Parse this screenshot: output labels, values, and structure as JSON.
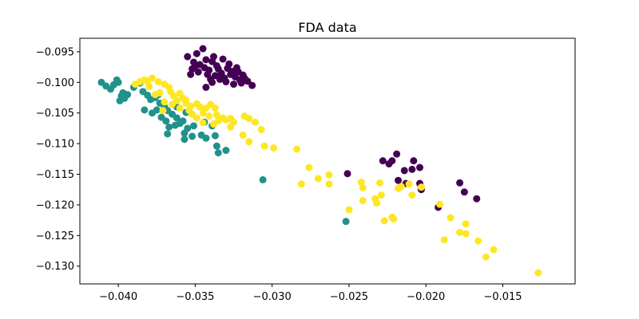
{
  "chart_data": {
    "type": "scatter",
    "title": "FDA data",
    "xlabel": "",
    "ylabel": "",
    "xlim": [
      -0.0425,
      -0.0103
    ],
    "ylim": [
      -0.1329,
      -0.0928
    ],
    "grid": false,
    "legend": "none",
    "x_ticks": [
      -0.04,
      -0.035,
      -0.03,
      -0.025,
      -0.02,
      -0.015
    ],
    "x_tick_labels": [
      "−0.040",
      "−0.035",
      "−0.030",
      "−0.025",
      "−0.020",
      "−0.015"
    ],
    "y_ticks": [
      -0.095,
      -0.1,
      -0.105,
      -0.11,
      -0.115,
      -0.12,
      -0.125,
      -0.13
    ],
    "y_tick_labels": [
      "−0.095",
      "−0.100",
      "−0.105",
      "−0.110",
      "−0.115",
      "−0.120",
      "−0.125",
      "−0.130"
    ],
    "series": [
      {
        "color": "#440154",
        "points": [
          [
            -0.0345,
            -0.0945
          ],
          [
            -0.0349,
            -0.0953
          ],
          [
            -0.0338,
            -0.0958
          ],
          [
            -0.0332,
            -0.0962
          ],
          [
            -0.0355,
            -0.0958
          ],
          [
            -0.0343,
            -0.0963
          ],
          [
            -0.0351,
            -0.0967
          ],
          [
            -0.0347,
            -0.0971
          ],
          [
            -0.0339,
            -0.0966
          ],
          [
            -0.0336,
            -0.0973
          ],
          [
            -0.0344,
            -0.0976
          ],
          [
            -0.0335,
            -0.0978
          ],
          [
            -0.0341,
            -0.098
          ],
          [
            -0.0329,
            -0.0977
          ],
          [
            -0.0326,
            -0.0982
          ],
          [
            -0.0333,
            -0.0985
          ],
          [
            -0.0322,
            -0.0983
          ],
          [
            -0.0327,
            -0.0987
          ],
          [
            -0.0319,
            -0.0988
          ],
          [
            -0.0324,
            -0.0991
          ],
          [
            -0.0318,
            -0.0993
          ],
          [
            -0.0316,
            -0.0998
          ],
          [
            -0.0321,
            -0.0996
          ],
          [
            -0.0331,
            -0.0993
          ],
          [
            -0.0337,
            -0.0989
          ],
          [
            -0.0342,
            -0.0987
          ],
          [
            -0.0348,
            -0.0983
          ],
          [
            -0.0352,
            -0.0978
          ],
          [
            -0.033,
            -0.0999
          ],
          [
            -0.0325,
            -0.1003
          ],
          [
            -0.032,
            -0.1001
          ],
          [
            -0.0313,
            -0.1005
          ],
          [
            -0.0339,
            -0.1
          ],
          [
            -0.0343,
            -0.1008
          ],
          [
            -0.0353,
            -0.0987
          ],
          [
            -0.0334,
            -0.0995
          ],
          [
            -0.0328,
            -0.097
          ],
          [
            -0.035,
            -0.0973
          ],
          [
            -0.034,
            -0.0995
          ],
          [
            -0.0323,
            -0.0976
          ],
          [
            -0.0251,
            -0.1149
          ],
          [
            -0.0228,
            -0.1128
          ],
          [
            -0.0224,
            -0.1133
          ],
          [
            -0.0219,
            -0.1117
          ],
          [
            -0.0222,
            -0.1128
          ],
          [
            -0.0214,
            -0.1144
          ],
          [
            -0.0208,
            -0.1128
          ],
          [
            -0.0209,
            -0.1142
          ],
          [
            -0.0204,
            -0.1139
          ],
          [
            -0.0218,
            -0.116
          ],
          [
            -0.0213,
            -0.1165
          ],
          [
            -0.0204,
            -0.1165
          ],
          [
            -0.0203,
            -0.1175
          ],
          [
            -0.0178,
            -0.1164
          ],
          [
            -0.0175,
            -0.1179
          ],
          [
            -0.0167,
            -0.119
          ],
          [
            -0.0192,
            -0.1204
          ]
        ]
      },
      {
        "color": "#21918c",
        "points": [
          [
            -0.0411,
            -0.1
          ],
          [
            -0.0408,
            -0.1006
          ],
          [
            -0.0403,
            -0.1004
          ],
          [
            -0.0401,
            -0.0996
          ],
          [
            -0.0405,
            -0.1011
          ],
          [
            -0.04,
            -0.1
          ],
          [
            -0.0397,
            -0.1017
          ],
          [
            -0.0398,
            -0.1022
          ],
          [
            -0.0396,
            -0.1026
          ],
          [
            -0.0394,
            -0.102
          ],
          [
            -0.0399,
            -0.103
          ],
          [
            -0.039,
            -0.1008
          ],
          [
            -0.0384,
            -0.1015
          ],
          [
            -0.0381,
            -0.1021
          ],
          [
            -0.0379,
            -0.1028
          ],
          [
            -0.0376,
            -0.1025
          ],
          [
            -0.0383,
            -0.1045
          ],
          [
            -0.0373,
            -0.1034
          ],
          [
            -0.0375,
            -0.1045
          ],
          [
            -0.037,
            -0.104
          ],
          [
            -0.0368,
            -0.1046
          ],
          [
            -0.0372,
            -0.1057
          ],
          [
            -0.0365,
            -0.1052
          ],
          [
            -0.0369,
            -0.1063
          ],
          [
            -0.0362,
            -0.1058
          ],
          [
            -0.036,
            -0.1067
          ],
          [
            -0.0367,
            -0.1073
          ],
          [
            -0.0363,
            -0.107
          ],
          [
            -0.0358,
            -0.1063
          ],
          [
            -0.0355,
            -0.1075
          ],
          [
            -0.0351,
            -0.1071
          ],
          [
            -0.0357,
            -0.1083
          ],
          [
            -0.0352,
            -0.1088
          ],
          [
            -0.0368,
            -0.1084
          ],
          [
            -0.0346,
            -0.1086
          ],
          [
            -0.0343,
            -0.1091
          ],
          [
            -0.0337,
            -0.1087
          ],
          [
            -0.0344,
            -0.1065
          ],
          [
            -0.0339,
            -0.1071
          ],
          [
            -0.0374,
            -0.102
          ],
          [
            -0.0386,
            -0.1001
          ],
          [
            -0.0362,
            -0.104
          ],
          [
            -0.0356,
            -0.1049
          ],
          [
            -0.0378,
            -0.105
          ],
          [
            -0.0357,
            -0.1093
          ],
          [
            -0.0336,
            -0.1104
          ],
          [
            -0.0335,
            -0.1115
          ],
          [
            -0.033,
            -0.1111
          ],
          [
            -0.0306,
            -0.1159
          ],
          [
            -0.0252,
            -0.1227
          ]
        ]
      },
      {
        "color": "#fde725",
        "points": [
          [
            -0.0389,
            -0.1003
          ],
          [
            -0.0386,
            -0.0999
          ],
          [
            -0.0383,
            -0.0996
          ],
          [
            -0.0381,
            -0.0998
          ],
          [
            -0.0378,
            -0.0993
          ],
          [
            -0.0374,
            -0.0999
          ],
          [
            -0.037,
            -0.1003
          ],
          [
            -0.0367,
            -0.1008
          ],
          [
            -0.0376,
            -0.102
          ],
          [
            -0.0373,
            -0.1017
          ],
          [
            -0.0366,
            -0.1015
          ],
          [
            -0.0364,
            -0.1022
          ],
          [
            -0.036,
            -0.1018
          ],
          [
            -0.0358,
            -0.1026
          ],
          [
            -0.037,
            -0.1032
          ],
          [
            -0.0365,
            -0.1036
          ],
          [
            -0.0362,
            -0.103
          ],
          [
            -0.0356,
            -0.1034
          ],
          [
            -0.0353,
            -0.1039
          ],
          [
            -0.0349,
            -0.1035
          ],
          [
            -0.0347,
            -0.104
          ],
          [
            -0.0343,
            -0.1042
          ],
          [
            -0.034,
            -0.1036
          ],
          [
            -0.0337,
            -0.1042
          ],
          [
            -0.036,
            -0.1042
          ],
          [
            -0.0354,
            -0.1046
          ],
          [
            -0.0352,
            -0.1052
          ],
          [
            -0.0349,
            -0.1058
          ],
          [
            -0.0345,
            -0.105
          ],
          [
            -0.0341,
            -0.1055
          ],
          [
            -0.0336,
            -0.1053
          ],
          [
            -0.0332,
            -0.1058
          ],
          [
            -0.033,
            -0.1061
          ],
          [
            -0.0335,
            -0.1063
          ],
          [
            -0.0327,
            -0.1059
          ],
          [
            -0.0325,
            -0.1065
          ],
          [
            -0.0338,
            -0.1068
          ],
          [
            -0.0318,
            -0.1055
          ],
          [
            -0.0315,
            -0.1059
          ],
          [
            -0.0311,
            -0.1065
          ],
          [
            -0.0307,
            -0.1077
          ],
          [
            -0.0327,
            -0.1073
          ],
          [
            -0.0319,
            -0.1086
          ],
          [
            -0.0315,
            -0.1097
          ],
          [
            -0.0305,
            -0.1104
          ],
          [
            -0.0299,
            -0.1107
          ],
          [
            -0.0284,
            -0.1109
          ],
          [
            -0.0276,
            -0.1139
          ],
          [
            -0.0263,
            -0.1151
          ],
          [
            -0.0281,
            -0.1166
          ],
          [
            -0.027,
            -0.1157
          ],
          [
            -0.0263,
            -0.1166
          ],
          [
            -0.025,
            -0.1208
          ],
          [
            -0.0242,
            -0.1163
          ],
          [
            -0.0241,
            -0.1172
          ],
          [
            -0.0241,
            -0.1193
          ],
          [
            -0.0233,
            -0.119
          ],
          [
            -0.0232,
            -0.1197
          ],
          [
            -0.023,
            -0.1164
          ],
          [
            -0.0229,
            -0.1184
          ],
          [
            -0.0227,
            -0.1226
          ],
          [
            -0.0222,
            -0.122
          ],
          [
            -0.0221,
            -0.1223
          ],
          [
            -0.0218,
            -0.1173
          ],
          [
            -0.0216,
            -0.117
          ],
          [
            -0.0211,
            -0.1166
          ],
          [
            -0.0209,
            -0.1184
          ],
          [
            -0.0203,
            -0.1171
          ],
          [
            -0.0191,
            -0.1199
          ],
          [
            -0.0188,
            -0.1257
          ],
          [
            -0.0184,
            -0.1221
          ],
          [
            -0.0178,
            -0.1245
          ],
          [
            -0.0174,
            -0.1231
          ],
          [
            -0.0174,
            -0.1247
          ],
          [
            -0.0166,
            -0.1259
          ],
          [
            -0.0161,
            -0.1285
          ],
          [
            -0.0156,
            -0.1273
          ],
          [
            -0.0127,
            -0.1311
          ],
          [
            -0.0371,
            -0.1046
          ],
          [
            -0.0345,
            -0.1066
          ],
          [
            -0.0356,
            -0.1029
          ],
          [
            -0.038,
            -0.1007
          ]
        ]
      }
    ]
  }
}
